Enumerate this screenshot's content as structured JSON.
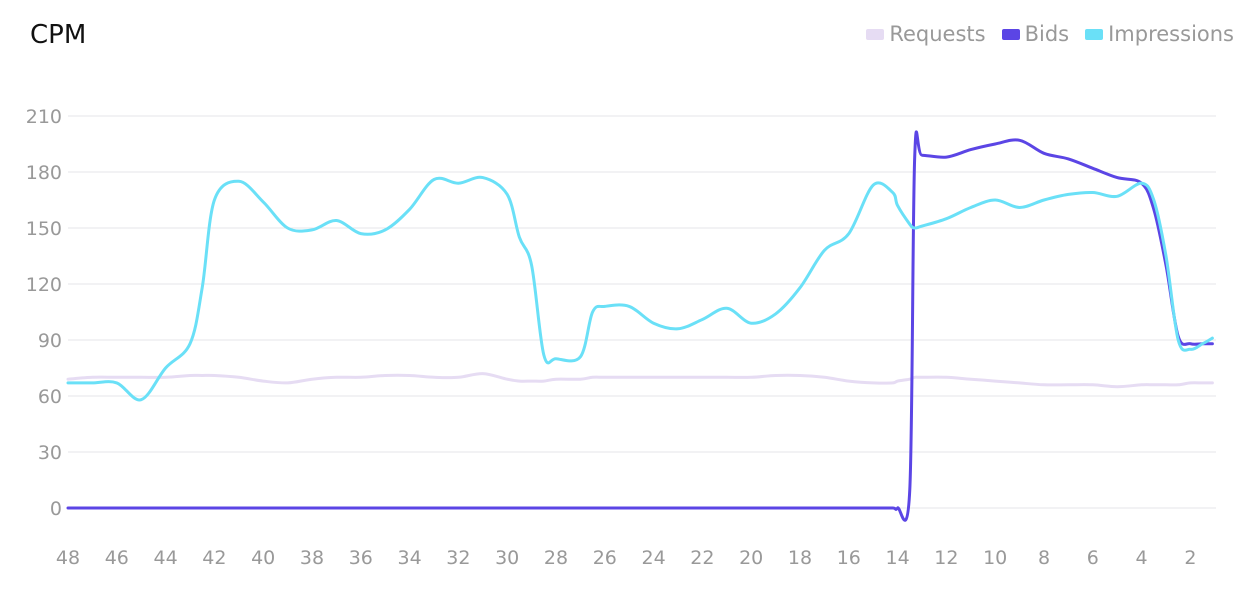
{
  "title": "CPM",
  "chart_data": {
    "type": "line",
    "title": "CPM",
    "xlabel": "",
    "ylabel": "",
    "x_tick_labels": [
      "48",
      "46",
      "44",
      "42",
      "40",
      "38",
      "36",
      "34",
      "32",
      "30",
      "28",
      "26",
      "24",
      "22",
      "20",
      "18",
      "16",
      "14",
      "12",
      "10",
      "8",
      "6",
      "4",
      "2"
    ],
    "xlim": [
      48,
      1.1
    ],
    "y_tick_labels": [
      "210",
      "180",
      "150",
      "120",
      "90",
      "60",
      "30",
      "0"
    ],
    "ylim": [
      0,
      210
    ],
    "grid": true,
    "legend_position": "top-right",
    "x": [
      48,
      47,
      46,
      45,
      44,
      43,
      42.5,
      42,
      41,
      40,
      39,
      38,
      37,
      36,
      35,
      34,
      33,
      32,
      31,
      30,
      29.5,
      29,
      28.5,
      28,
      27,
      26.5,
      26,
      25,
      24,
      23,
      22,
      21,
      20,
      19,
      18,
      17,
      16,
      15,
      14.2,
      14,
      13.5,
      13.3,
      13,
      12,
      11,
      10,
      9,
      8,
      7,
      6,
      5,
      4,
      3.5,
      3,
      2.5,
      2,
      1.5,
      1.1
    ],
    "series": [
      {
        "name": "Requests",
        "color": "#e6dcf3",
        "values": [
          69,
          70,
          70,
          70,
          70,
          71,
          71,
          71,
          70,
          68,
          67,
          69,
          70,
          70,
          71,
          71,
          70,
          70,
          72,
          69,
          68,
          68,
          68,
          69,
          69,
          70,
          70,
          70,
          70,
          70,
          70,
          70,
          70,
          71,
          71,
          70,
          68,
          67,
          67,
          68,
          69,
          70,
          70,
          70,
          69,
          68,
          67,
          66,
          66,
          66,
          65,
          66,
          66,
          66,
          66,
          67,
          67,
          67
        ]
      },
      {
        "name": "Bids",
        "color": "#5b45e5",
        "values": [
          0,
          0,
          0,
          0,
          0,
          0,
          0,
          0,
          0,
          0,
          0,
          0,
          0,
          0,
          0,
          0,
          0,
          0,
          0,
          0,
          0,
          0,
          0,
          0,
          0,
          0,
          0,
          0,
          0,
          0,
          0,
          0,
          0,
          0,
          0,
          0,
          0,
          0,
          0,
          0,
          10,
          188,
          189,
          188,
          192,
          195,
          197,
          190,
          187,
          182,
          177,
          174,
          160,
          130,
          92,
          88,
          88,
          88
        ]
      },
      {
        "name": "Impressions",
        "color": "#6ae0f7",
        "values": [
          67,
          67,
          67,
          58,
          75,
          88,
          118,
          165,
          175,
          164,
          150,
          149,
          154,
          147,
          149,
          160,
          176,
          174,
          177,
          168,
          145,
          130,
          82,
          80,
          81,
          105,
          108,
          108,
          99,
          96,
          101,
          107,
          99,
          104,
          118,
          138,
          147,
          173,
          169,
          162,
          152,
          150,
          151,
          155,
          161,
          165,
          161,
          165,
          168,
          169,
          167,
          174,
          165,
          135,
          90,
          85,
          88,
          91
        ]
      }
    ]
  }
}
